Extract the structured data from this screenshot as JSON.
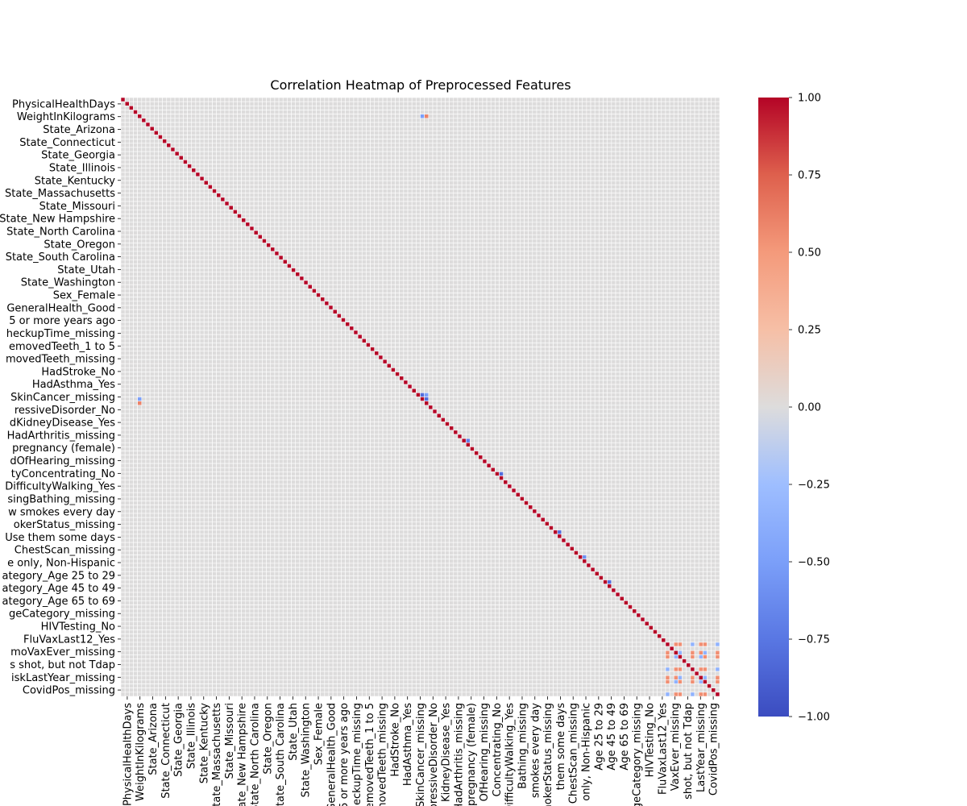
{
  "chart_data": {
    "type": "heatmap",
    "title": "Correlation Heatmap of Preprocessed Features",
    "colormap": "coolwarm",
    "vmin": -1.0,
    "vmax": 1.0,
    "grid": true,
    "matrix_size": 144,
    "diagonal_value": 1.0,
    "background_value": 0.0,
    "y_tick_labels": [
      "PhysicalHealthDays",
      "WeightInKilograms",
      "State_Arizona",
      "State_Connecticut",
      "State_Georgia",
      "State_Illinois",
      "State_Kentucky",
      "State_Massachusetts",
      "State_Missouri",
      "State_New Hampshire",
      "State_North Carolina",
      "State_Oregon",
      "State_South Carolina",
      "State_Utah",
      "State_Washington",
      "Sex_Female",
      "GeneralHealth_Good",
      "5 or more years ago",
      "heckupTime_missing",
      "emovedTeeth_1 to 5",
      "movedTeeth_missing",
      "HadStroke_No",
      "HadAsthma_Yes",
      "SkinCancer_missing",
      "ressiveDisorder_No",
      "dKidneyDisease_Yes",
      "HadArthritis_missing",
      "pregnancy (female)",
      "dOfHearing_missing",
      "tyConcentrating_No",
      "DifficultyWalking_Yes",
      "singBathing_missing",
      "w smokes every day",
      "okerStatus_missing",
      "Use them some days",
      "ChestScan_missing",
      "e only, Non-Hispanic",
      "ategory_Age 25 to 29",
      "ategory_Age 45 to 49",
      "ategory_Age 65 to 69",
      "geCategory_missing",
      "HIVTesting_No",
      "FluVaxLast12_Yes",
      "moVaxEver_missing",
      "s shot, but not Tdap",
      "iskLastYear_missing",
      "CovidPos_missing"
    ],
    "x_tick_labels": [
      "PhysicalHealthDays",
      "WeightInKilograms",
      "State_Arizona",
      "State_Connecticut",
      "State_Georgia",
      "State_Illinois",
      "State_Kentucky",
      "State_Massachusetts",
      "State_Missouri",
      "State_New Hampshire",
      "State_North Carolina",
      "State_Oregon",
      "State_South Carolina",
      "State_Utah",
      "State_Washington",
      "Sex_Female",
      "GeneralHealth_Good",
      "5 or more years ago",
      "CheckupTime_missing",
      "RemovedTeeth_1 to 5",
      "RemovedTeeth_missing",
      "HadStroke_No",
      "HadAsthma_Yes",
      "SkinCancer_missing",
      "DepressiveDisorder_No",
      "KidneyDisease_Yes",
      "HadArthritis_missing",
      "pregnancy (female)",
      "OfHearing_missing",
      "Concentrating_No",
      "DifficultyWalking_Yes",
      "Bathing_missing",
      "smokes every day",
      "SmokerStatus_missing",
      "them some days",
      "ChestScan_missing",
      "only, Non-Hispanic",
      "Age 25 to 29",
      "Age 45 to 49",
      "Age 65 to 69",
      "AgeCategory_missing",
      "HIVTesting_No",
      "FluVaxLast12_Yes",
      "VaxEver_missing",
      "shot, but not Tdap",
      "LastYear_missing",
      "CovidPos_missing"
    ],
    "colorbar_ticks": [
      1.0,
      0.75,
      0.5,
      0.25,
      0.0,
      -0.25,
      -0.5,
      -0.75,
      -1.0
    ],
    "colorbar_tick_labels": [
      "1.00",
      "0.75",
      "0.50",
      "0.25",
      "0.00",
      "−0.25",
      "−0.50",
      "−0.75",
      "−1.00"
    ],
    "notable_cells": [
      {
        "row": 71,
        "col": 72,
        "value": -0.8
      },
      {
        "row": 71,
        "col": 73,
        "value": -0.5
      },
      {
        "row": 72,
        "col": 73,
        "value": -0.8
      },
      {
        "row": 82,
        "col": 83,
        "value": -0.7
      },
      {
        "row": 90,
        "col": 91,
        "value": -0.8
      },
      {
        "row": 104,
        "col": 105,
        "value": -0.8
      },
      {
        "row": 110,
        "col": 111,
        "value": -0.6
      },
      {
        "row": 116,
        "col": 117,
        "value": -0.8
      },
      {
        "row": 4,
        "col": 73,
        "value": 0.6
      },
      {
        "row": 4,
        "col": 72,
        "value": -0.5
      },
      {
        "row": 73,
        "col": 4,
        "value": 0.6
      },
      {
        "row": 72,
        "col": 4,
        "value": -0.5
      }
    ],
    "missing_block": {
      "indices": [
        131,
        133,
        134,
        137,
        139,
        140,
        143,
        145,
        147,
        150,
        155,
        156,
        159,
        160,
        162,
        181,
        183,
        185,
        187,
        189,
        191,
        192
      ],
      "positive_value": 0.55,
      "negative_value": -0.35
    }
  }
}
